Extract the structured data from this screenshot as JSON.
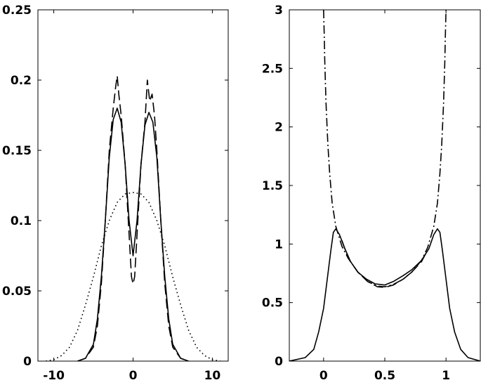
{
  "chart_data": [
    {
      "type": "line",
      "title": "",
      "xlabel": "",
      "ylabel": "",
      "xlim": [
        -12,
        12
      ],
      "ylim": [
        0,
        0.25
      ],
      "xticks": [
        -10,
        0,
        10
      ],
      "xtick_labels": [
        "-10",
        "0",
        "10"
      ],
      "yticks": [
        0,
        0.05,
        0.1,
        0.15,
        0.2,
        0.25
      ],
      "ytick_labels": [
        "0",
        "0.05",
        "0.1",
        "0.15",
        "0.2",
        "0.25"
      ],
      "grid": false,
      "series": [
        {
          "style": "solid",
          "points": [
            [
              -7,
              0
            ],
            [
              -6,
              0.002
            ],
            [
              -5,
              0.012
            ],
            [
              -4.5,
              0.03
            ],
            [
              -4,
              0.06
            ],
            [
              -3.5,
              0.1
            ],
            [
              -3,
              0.145
            ],
            [
              -2.5,
              0.172
            ],
            [
              -2,
              0.18
            ],
            [
              -1.5,
              0.17
            ],
            [
              -1,
              0.14
            ],
            [
              -0.5,
              0.1
            ],
            [
              0,
              0.075
            ],
            [
              0.5,
              0.1
            ],
            [
              1,
              0.14
            ],
            [
              1.5,
              0.168
            ],
            [
              2,
              0.177
            ],
            [
              2.5,
              0.17
            ],
            [
              3,
              0.145
            ],
            [
              3.5,
              0.1
            ],
            [
              4,
              0.06
            ],
            [
              4.5,
              0.03
            ],
            [
              5,
              0.012
            ],
            [
              6,
              0.002
            ],
            [
              7,
              0
            ]
          ]
        },
        {
          "style": "dashed",
          "points": [
            [
              -7,
              0
            ],
            [
              -6,
              0.002
            ],
            [
              -5,
              0.01
            ],
            [
              -4.5,
              0.025
            ],
            [
              -4,
              0.055
            ],
            [
              -3.5,
              0.1
            ],
            [
              -3,
              0.15
            ],
            [
              -2.5,
              0.18
            ],
            [
              -2.2,
              0.195
            ],
            [
              -2,
              0.203
            ],
            [
              -1.8,
              0.19
            ],
            [
              -1.5,
              0.175
            ],
            [
              -1,
              0.14
            ],
            [
              -0.5,
              0.09
            ],
            [
              -0.2,
              0.06
            ],
            [
              0,
              0.055
            ],
            [
              0.2,
              0.06
            ],
            [
              0.5,
              0.09
            ],
            [
              1,
              0.14
            ],
            [
              1.5,
              0.17
            ],
            [
              1.8,
              0.2
            ],
            [
              2.1,
              0.185
            ],
            [
              2.4,
              0.19
            ],
            [
              2.7,
              0.175
            ],
            [
              3,
              0.15
            ],
            [
              3.5,
              0.1
            ],
            [
              4,
              0.055
            ],
            [
              4.5,
              0.025
            ],
            [
              5,
              0.01
            ],
            [
              6,
              0.002
            ],
            [
              7,
              0
            ]
          ]
        },
        {
          "style": "dotted",
          "points": [
            [
              -11,
              0
            ],
            [
              -10,
              0.001
            ],
            [
              -9,
              0.004
            ],
            [
              -8,
              0.01
            ],
            [
              -7,
              0.022
            ],
            [
              -6,
              0.04
            ],
            [
              -5,
              0.06
            ],
            [
              -4,
              0.082
            ],
            [
              -3,
              0.1
            ],
            [
              -2,
              0.113
            ],
            [
              -1,
              0.119
            ],
            [
              0,
              0.12
            ],
            [
              1,
              0.119
            ],
            [
              2,
              0.113
            ],
            [
              3,
              0.1
            ],
            [
              4,
              0.082
            ],
            [
              5,
              0.06
            ],
            [
              6,
              0.04
            ],
            [
              7,
              0.022
            ],
            [
              8,
              0.01
            ],
            [
              9,
              0.004
            ],
            [
              10,
              0.001
            ],
            [
              11,
              0
            ]
          ]
        }
      ]
    },
    {
      "type": "line",
      "title": "",
      "xlabel": "",
      "ylabel": "",
      "xlim": [
        -0.28,
        1.28
      ],
      "ylim": [
        0,
        3
      ],
      "xticks": [
        0,
        0.5,
        1
      ],
      "xtick_labels": [
        "0",
        "0.5",
        "1"
      ],
      "yticks": [
        0,
        0.5,
        1,
        1.5,
        2,
        2.5,
        3
      ],
      "ytick_labels": [
        "0",
        "0.5",
        "1",
        "1.5",
        "2",
        "2.5",
        "3"
      ],
      "grid": false,
      "series": [
        {
          "style": "solid",
          "points": [
            [
              -0.28,
              0
            ],
            [
              -0.15,
              0.03
            ],
            [
              -0.08,
              0.1
            ],
            [
              -0.04,
              0.25
            ],
            [
              0,
              0.45
            ],
            [
              0.03,
              0.7
            ],
            [
              0.06,
              0.95
            ],
            [
              0.08,
              1.1
            ],
            [
              0.1,
              1.13
            ],
            [
              0.13,
              1.08
            ],
            [
              0.17,
              0.97
            ],
            [
              0.22,
              0.85
            ],
            [
              0.28,
              0.76
            ],
            [
              0.35,
              0.7
            ],
            [
              0.42,
              0.66
            ],
            [
              0.5,
              0.65
            ],
            [
              0.57,
              0.68
            ],
            [
              0.65,
              0.73
            ],
            [
              0.72,
              0.78
            ],
            [
              0.8,
              0.86
            ],
            [
              0.86,
              0.96
            ],
            [
              0.9,
              1.08
            ],
            [
              0.93,
              1.13
            ],
            [
              0.95,
              1.1
            ],
            [
              0.97,
              0.95
            ],
            [
              1,
              0.7
            ],
            [
              1.03,
              0.45
            ],
            [
              1.07,
              0.25
            ],
            [
              1.12,
              0.1
            ],
            [
              1.18,
              0.03
            ],
            [
              1.28,
              0
            ]
          ]
        },
        {
          "style": "dashed",
          "points": [
            [
              0.15,
              1.03
            ],
            [
              0.2,
              0.88
            ],
            [
              0.28,
              0.76
            ],
            [
              0.36,
              0.68
            ],
            [
              0.44,
              0.635
            ],
            [
              0.5,
              0.63
            ],
            [
              0.57,
              0.65
            ],
            [
              0.65,
              0.7
            ],
            [
              0.72,
              0.76
            ],
            [
              0.8,
              0.85
            ],
            [
              0.85,
              0.95
            ]
          ]
        },
        {
          "style": "dashdot",
          "points": [
            [
              0,
              3
            ],
            [
              0.005,
              2.8
            ],
            [
              0.01,
              2.55
            ],
            [
              0.02,
              2.2
            ],
            [
              0.035,
              1.85
            ],
            [
              0.05,
              1.6
            ],
            [
              0.07,
              1.35
            ],
            [
              0.1,
              1.15
            ],
            [
              0.15,
              0.98
            ],
            [
              0.2,
              0.88
            ],
            [
              0.28,
              0.76
            ],
            [
              0.36,
              0.68
            ],
            [
              0.44,
              0.64
            ],
            [
              0.5,
              0.635
            ],
            [
              0.57,
              0.655
            ],
            [
              0.65,
              0.7
            ],
            [
              0.72,
              0.76
            ],
            [
              0.8,
              0.86
            ],
            [
              0.85,
              0.97
            ],
            [
              0.9,
              1.15
            ],
            [
              0.93,
              1.35
            ],
            [
              0.95,
              1.6
            ],
            [
              0.965,
              1.85
            ],
            [
              0.98,
              2.2
            ],
            [
              0.99,
              2.55
            ],
            [
              0.995,
              2.8
            ],
            [
              1,
              3
            ]
          ]
        }
      ]
    }
  ]
}
